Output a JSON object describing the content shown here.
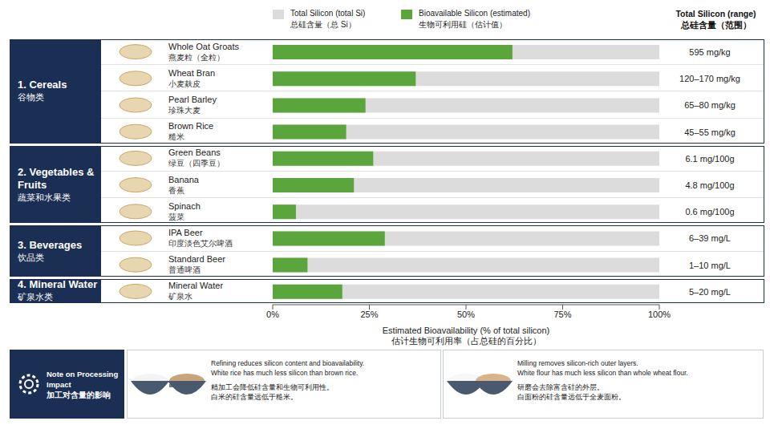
{
  "chart_data": {
    "type": "bar",
    "orientation": "horizontal",
    "grid": false,
    "legend": "top",
    "stacked": false,
    "categories": [
      "Whole Oat Groats",
      "Wheat Bran",
      "Pearl Barley",
      "Brown Rice",
      "Green Beans",
      "Banana",
      "Spinach",
      "IPA Beer",
      "Standard Beer",
      "Mineral Water"
    ],
    "categories_zh": [
      "燕麦粒（全粒）",
      "小麦麸皮",
      "珍珠大麦",
      "糙米",
      "绿豆（四季豆）",
      "香蕉",
      "菠菜",
      "印度淡色艾尔啤酒",
      "普通啤酒",
      "矿泉水"
    ],
    "groups": [
      {
        "name": "1. Cereals",
        "name_zh": "谷物类",
        "items": [
          "Whole Oat Groats",
          "Wheat Bran",
          "Pearl Barley",
          "Brown Rice"
        ]
      },
      {
        "name": "2. Vegetables & Fruits",
        "name_zh": "蔬菜和水果类",
        "items": [
          "Green Beans",
          "Banana",
          "Spinach"
        ]
      },
      {
        "name": "3. Beverages",
        "name_zh": "饮品类",
        "items": [
          "IPA Beer",
          "Standard Beer"
        ]
      },
      {
        "name": "4. Mineral Water",
        "name_zh": "矿泉水类",
        "items": [
          "Mineral Water"
        ]
      }
    ],
    "series": [
      {
        "name": "Total Silicon (total Si)",
        "name_zh": "总硅含量（总 Si）",
        "color": "#dcdcdc",
        "values": [
          100,
          100,
          100,
          100,
          100,
          100,
          100,
          100,
          100,
          100
        ]
      },
      {
        "name": "Bioavailable Silicon (estimated)",
        "name_zh": "生物可利用硅（估计值）",
        "color": "#5aa63c",
        "values": [
          62,
          37,
          24,
          19,
          26,
          21,
          6,
          29,
          9,
          18
        ]
      }
    ],
    "total_silicon": {
      "title": "Total Silicon (range)",
      "title_zh": "总硅含量（范围）",
      "labels": [
        "595 mg/kg",
        "120–170 mg/kg",
        "65–80 mg/kg",
        "45–55 mg/kg",
        "6.1 mg/100g",
        "4.8 mg/100g",
        "0.6 mg/100g",
        "6–39 mg/L",
        "1–10 mg/L",
        "5–20 mg/L"
      ]
    },
    "x_label": "Estimated Bioavailability (% of total silicon)",
    "x_label_zh": "估计生物可利用率（占总硅的百分比）",
    "xlim": [
      0,
      100
    ],
    "xticks": [
      {
        "value": 0,
        "label": "0%"
      },
      {
        "value": 25,
        "label": "25%"
      },
      {
        "value": 50,
        "label": "50%"
      },
      {
        "value": 75,
        "label": "75%"
      },
      {
        "value": 100,
        "label": "100%"
      }
    ]
  },
  "notes": {
    "title": "Note on Processing Impact",
    "title_zh": "加工对含量的影响",
    "items": [
      {
        "lines": [
          "Refining reduces silicon content and bioavailability.",
          "White rice has much less silicon than brown rice."
        ],
        "lines_zh": [
          "精加工会降低硅含量和生物可利用性。",
          "白米的硅含量远低于糙米。"
        ]
      },
      {
        "lines": [
          "Milling removes silicon-rich outer layers.",
          "White flour has much less silicon than whole wheat flour."
        ],
        "lines_zh": [
          "研磨会去除富含硅的外层。",
          "白面粉的硅含量远低于全麦面粉。"
        ]
      }
    ]
  }
}
